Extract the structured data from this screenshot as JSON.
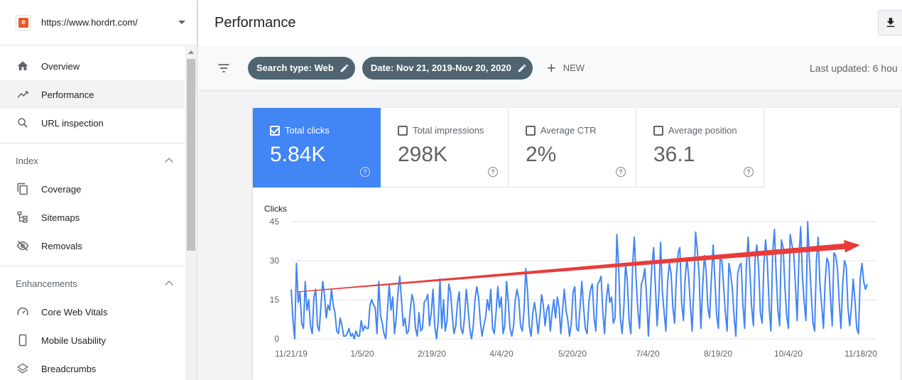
{
  "sidebar": {
    "property_url": "https://www.hordrt.com/",
    "nav_top": [
      {
        "label": "Overview",
        "icon": "home-icon"
      },
      {
        "label": "Performance",
        "icon": "trending-up-icon"
      },
      {
        "label": "URL inspection",
        "icon": "search-icon"
      }
    ],
    "sections": [
      {
        "title": "Index",
        "items": [
          {
            "label": "Coverage",
            "icon": "copy-icon"
          },
          {
            "label": "Sitemaps",
            "icon": "sitemap-icon"
          },
          {
            "label": "Removals",
            "icon": "eye-off-icon"
          }
        ]
      },
      {
        "title": "Enhancements",
        "items": [
          {
            "label": "Core Web Vitals",
            "icon": "speedometer-icon"
          },
          {
            "label": "Mobile Usability",
            "icon": "phone-icon"
          },
          {
            "label": "Breadcrumbs",
            "icon": "layers-icon"
          }
        ]
      }
    ]
  },
  "header": {
    "title": "Performance"
  },
  "filters": {
    "chips": [
      "Search type: Web",
      "Date: Nov 21, 2019-Nov 20, 2020"
    ],
    "new_label": "NEW",
    "last_updated": "Last updated: 6 hou"
  },
  "metrics": [
    {
      "label": "Total clicks",
      "value": "5.84K",
      "checked": true,
      "color": "#4285f4"
    },
    {
      "label": "Total impressions",
      "value": "298K",
      "checked": false
    },
    {
      "label": "Average CTR",
      "value": "2%",
      "checked": false
    },
    {
      "label": "Average position",
      "value": "36.1",
      "checked": false
    }
  ],
  "chart_data": {
    "type": "line",
    "ylabel": "Clicks",
    "ylim": [
      0,
      45
    ],
    "yticks": [
      0,
      15,
      30,
      45
    ],
    "xticks": [
      "11/21/19",
      "1/5/20",
      "2/19/20",
      "4/4/20",
      "5/20/20",
      "7/4/20",
      "8/19/20",
      "10/4/20",
      "11/18/20"
    ],
    "series": [
      {
        "color": "#4285f4",
        "values": [
          19,
          7,
          0,
          29,
          14,
          18,
          6,
          4,
          22,
          11,
          15,
          5,
          2,
          16,
          19,
          5,
          3,
          13,
          22,
          17,
          8,
          13,
          11,
          19,
          13,
          10,
          3,
          2,
          8,
          5,
          1,
          1,
          2,
          4,
          1,
          2,
          0,
          3,
          1,
          1,
          7,
          3,
          5,
          4,
          4,
          13,
          15,
          13,
          12,
          2,
          22,
          9,
          6,
          2,
          0,
          11,
          21,
          11,
          16,
          2,
          8,
          18,
          24,
          15,
          5,
          8,
          2,
          3,
          11,
          17,
          14,
          4,
          1,
          10,
          3,
          4,
          14,
          15,
          17,
          5,
          10,
          19,
          5,
          0,
          7,
          23,
          4,
          15,
          3,
          7,
          21,
          18,
          9,
          2,
          5,
          14,
          18,
          4,
          2,
          8,
          19,
          12,
          4,
          0,
          5,
          15,
          20,
          16,
          7,
          1,
          5,
          8,
          15,
          11,
          19,
          4,
          2,
          10,
          20,
          12,
          16,
          2,
          5,
          22,
          14,
          4,
          1,
          5,
          15,
          19,
          15,
          5,
          3,
          11,
          27,
          18,
          5,
          1,
          10,
          14,
          9,
          2,
          8,
          17,
          13,
          5,
          11,
          13,
          3,
          10,
          15,
          8,
          16,
          12,
          2,
          11,
          19,
          11,
          7,
          1,
          6,
          18,
          20,
          4,
          3,
          12,
          22,
          12,
          4,
          2,
          14,
          19,
          21,
          8,
          3,
          21,
          22,
          24,
          10,
          2,
          15,
          21,
          14,
          16,
          6,
          8,
          40,
          28,
          8,
          2,
          12,
          29,
          22,
          7,
          2,
          28,
          39,
          23,
          11,
          4,
          21,
          23,
          27,
          16,
          1,
          14,
          28,
          35,
          21,
          5,
          17,
          37,
          18,
          10,
          3,
          22,
          29,
          25,
          12,
          6,
          24,
          33,
          35,
          14,
          7,
          23,
          31,
          24,
          13,
          3,
          20,
          41,
          34,
          24,
          4,
          20,
          32,
          26,
          12,
          8,
          23,
          36,
          23,
          9,
          4,
          31,
          30,
          20,
          10,
          3,
          29,
          25,
          19,
          8,
          1,
          25,
          28,
          29,
          13,
          4,
          28,
          39,
          26,
          12,
          5,
          31,
          36,
          27,
          10,
          6,
          29,
          38,
          29,
          12,
          3,
          33,
          42,
          25,
          11,
          5,
          38,
          35,
          20,
          9,
          4,
          40,
          36,
          33,
          21,
          7,
          31,
          43,
          24,
          14,
          7,
          45,
          30,
          18,
          6,
          3,
          30,
          39,
          21,
          13,
          4,
          22,
          31,
          29,
          16,
          5,
          33,
          32,
          27,
          14,
          4,
          21,
          30,
          28,
          12,
          5,
          12,
          23,
          15,
          4,
          2,
          23,
          29,
          22,
          19,
          21
        ]
      }
    ]
  },
  "annotation": {
    "type": "trend-arrow",
    "color": "#ea3b3b",
    "from_y": 18,
    "to_y": 36
  }
}
